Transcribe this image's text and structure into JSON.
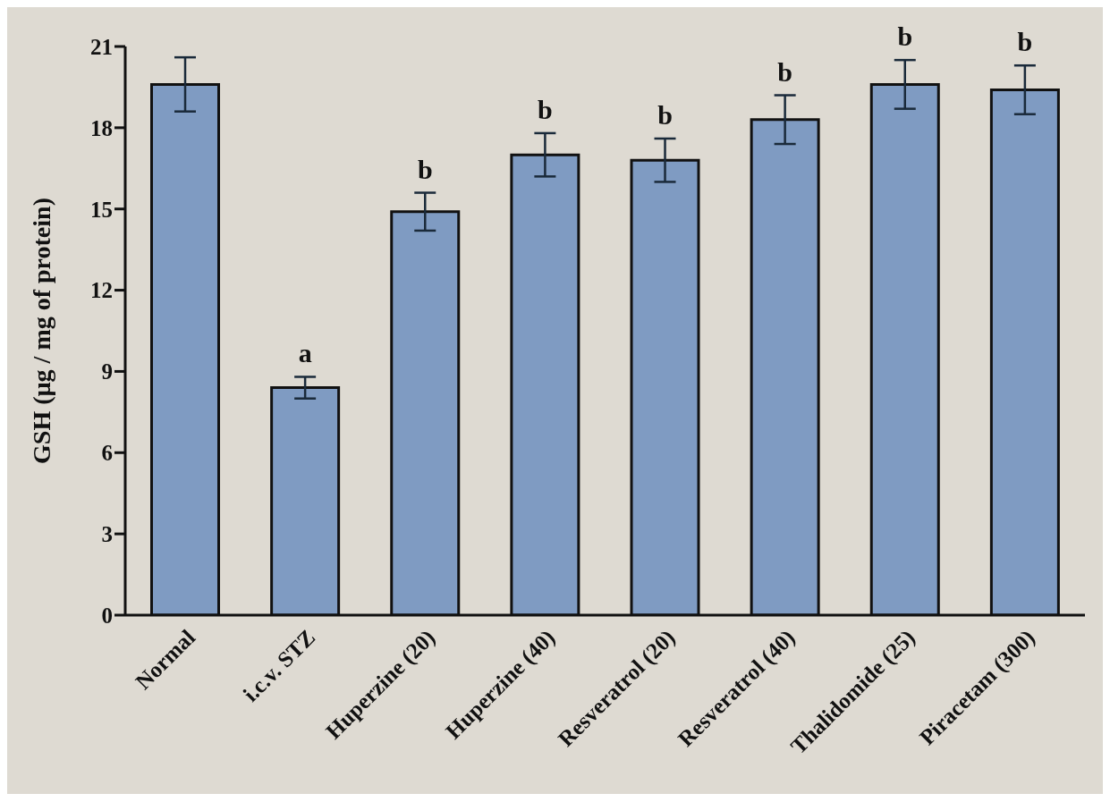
{
  "chart_data": {
    "type": "bar",
    "ylabel": "GSH (µg / mg of protein)",
    "categories": [
      "Normal",
      "i.c.v. STZ",
      "Huperzine (20)",
      "Huperzine (40)",
      "Resveratrol (20)",
      "Resveratrol (40)",
      "Thalidomide (25)",
      "Piracetam (300)"
    ],
    "values": [
      19.6,
      8.4,
      14.9,
      17.0,
      16.8,
      18.3,
      19.6,
      19.4
    ],
    "errors": [
      1.0,
      0.4,
      0.7,
      0.8,
      0.8,
      0.9,
      0.9,
      0.9
    ],
    "color": "#7f9bc2",
    "ylim": [
      0,
      21
    ],
    "yticks": [
      0,
      3,
      6,
      9,
      12,
      15,
      18,
      21
    ],
    "annotations": [
      {
        "text": "a",
        "x": "i.c.v. STZ",
        "y": 8.8
      },
      {
        "text": "b",
        "x": "Huperzine (20)",
        "y": 15.6
      },
      {
        "text": "b",
        "x": "Huperzine (40)",
        "y": 17.8
      },
      {
        "text": "b",
        "x": "Resveratrol (20)",
        "y": 17.6
      },
      {
        "text": "b",
        "x": "Resveratrol (40)",
        "y": 19.2
      },
      {
        "text": "b",
        "x": "Thalidomide (25)",
        "y": 20.5
      },
      {
        "text": "b",
        "x": "Piracetam (300)",
        "y": 20.3
      }
    ]
  }
}
